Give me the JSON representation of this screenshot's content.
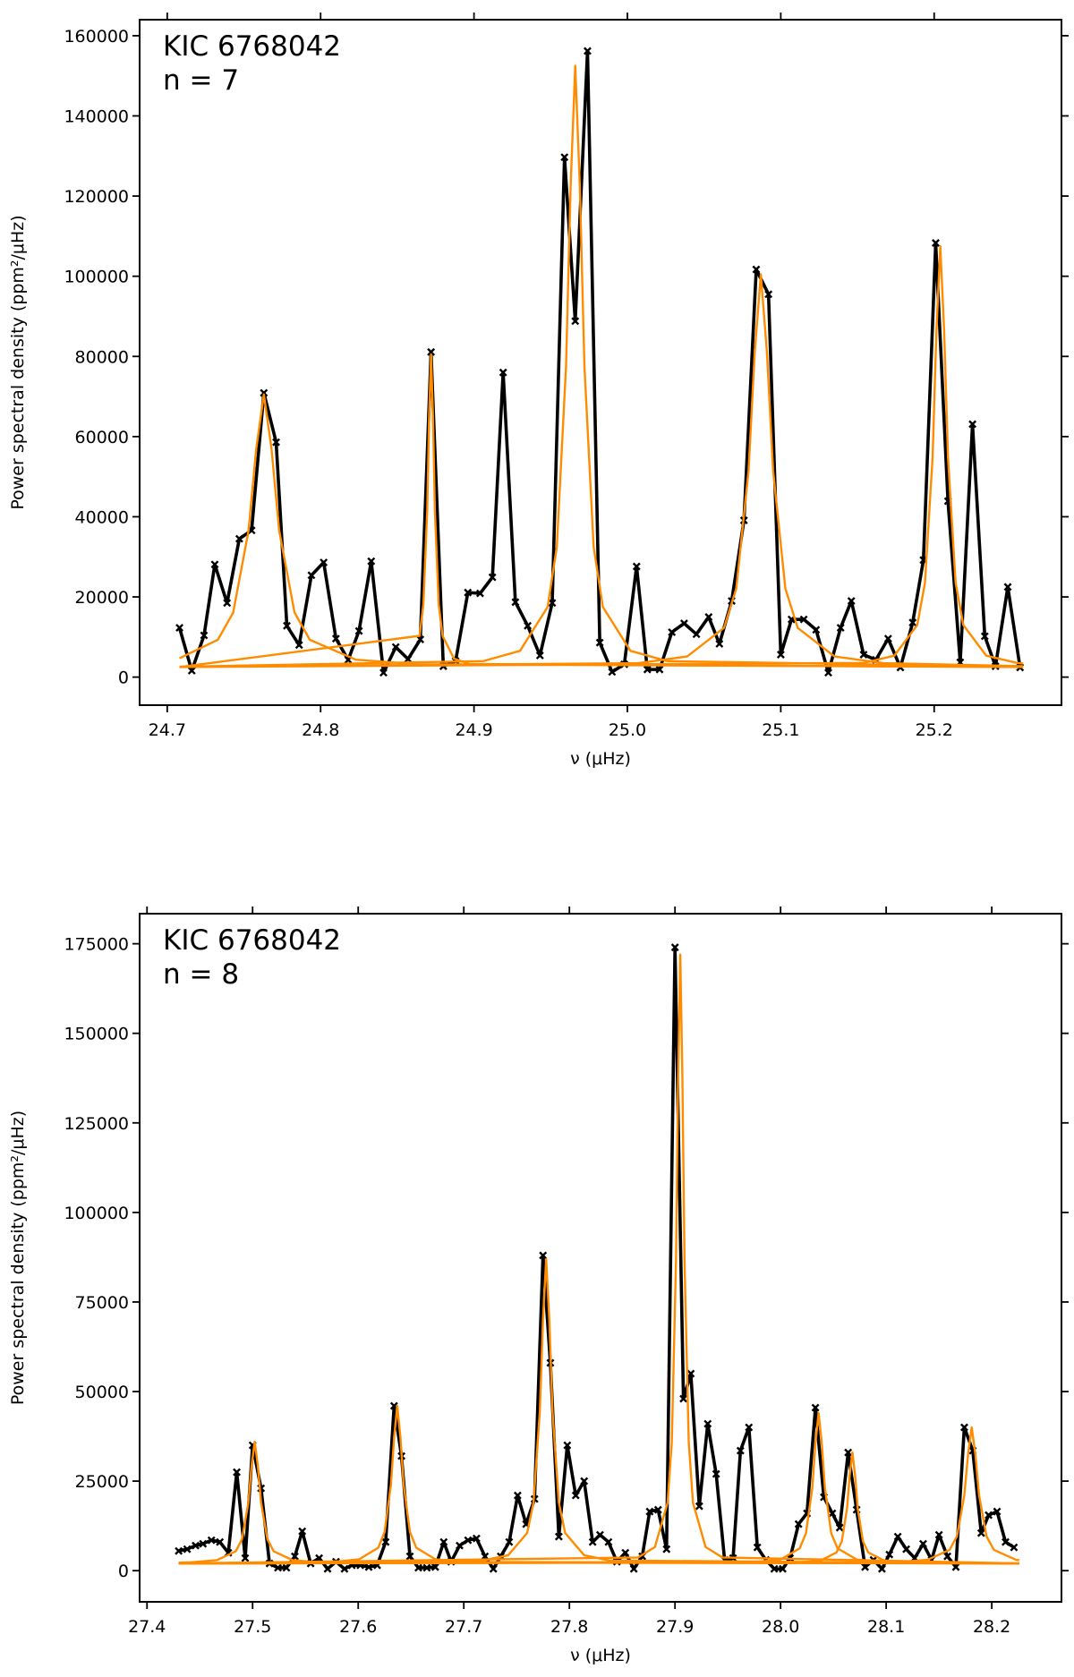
{
  "chart_data": [
    {
      "type": "line",
      "annotations": [
        "KIC 6768042",
        "n = 7"
      ],
      "x_label": "ν (μHz)",
      "y_label": "Power spectral density (ppm²/μHz)",
      "xlim": [
        24.682,
        25.283
      ],
      "ylim": [
        -7000,
        164000
      ],
      "xticks": [
        24.7,
        24.8,
        24.9,
        {
          "value": 25,
          "label": "25.0"
        },
        25.1,
        25.2
      ],
      "yticks": [
        0,
        20000,
        40000,
        60000,
        80000,
        100000,
        120000,
        140000,
        160000
      ],
      "series": [
        {
          "color": "#000000",
          "marker": "x",
          "x": [
            24.708,
            24.716,
            24.724,
            24.731,
            24.739,
            24.747,
            24.755,
            24.763,
            24.771,
            24.778,
            24.786,
            24.794,
            24.802,
            24.81,
            24.818,
            24.825,
            24.833,
            24.841,
            24.849,
            24.857,
            24.865,
            24.872,
            24.88,
            24.888,
            24.896,
            24.904,
            24.912,
            24.919,
            24.927,
            24.935,
            24.943,
            24.951,
            24.959,
            24.966,
            24.974,
            24.982,
            24.99,
            24.998,
            25.006,
            25.013,
            25.021,
            25.029,
            25.037,
            25.045,
            25.053,
            25.06,
            25.068,
            25.076,
            25.084,
            25.092,
            25.1,
            25.107,
            25.115,
            25.123,
            25.131,
            25.139,
            25.146,
            25.154,
            25.162,
            25.17,
            25.178,
            25.186,
            25.193,
            25.201,
            25.209,
            25.217,
            25.225,
            25.233,
            25.24,
            25.248,
            25.256
          ],
          "values": [
            12300,
            1600,
            10400,
            28100,
            18500,
            34500,
            36600,
            70900,
            58600,
            12800,
            8000,
            25400,
            28600,
            9600,
            4300,
            11500,
            28900,
            1100,
            7500,
            4500,
            9400,
            81100,
            2700,
            4000,
            21100,
            20900,
            24900,
            76000,
            18700,
            12800,
            5400,
            18500,
            129700,
            88800,
            156200,
            8600,
            1300,
            3200,
            27600,
            1900,
            1900,
            11200,
            13400,
            10700,
            15000,
            8300,
            19000,
            39100,
            101700,
            95500,
            5600,
            14400,
            14400,
            11800,
            1100,
            12300,
            19000,
            5600,
            4300,
            9600,
            2400,
            13600,
            29200,
            108300,
            43900,
            3700,
            63100,
            10200,
            2700,
            22500,
            2400
          ]
        },
        {
          "color": "#ff8c00",
          "x": [
            24.708,
            24.733,
            24.743,
            24.753,
            24.758,
            24.763,
            24.768,
            24.773,
            24.783,
            24.793,
            24.823,
            24.863,
            25.258
          ],
          "values": [
            4700,
            9300,
            16100,
            36500,
            56900,
            70500,
            56900,
            36500,
            16100,
            9300,
            4340,
            3200,
            2530
          ]
        },
        {
          "color": "#ff8c00",
          "x": [
            24.708,
            24.8645,
            24.867,
            24.8695,
            24.87075,
            24.872,
            24.87325,
            24.8745,
            24.877,
            24.8795,
            24.887,
            24.897,
            25.258
          ],
          "values": [
            2510,
            10300,
            18100,
            41500,
            64900,
            80500,
            64900,
            41500,
            18100,
            10300,
            4600,
            3270,
            2500
          ]
        },
        {
          "color": "#ff8c00",
          "x": [
            24.708,
            24.906,
            24.93,
            24.948,
            24.954,
            24.96,
            24.963,
            24.966,
            24.969,
            24.972,
            24.978,
            24.984,
            25.002,
            25.026,
            25.258
          ],
          "values": [
            2580,
            3990,
            6550,
            17500,
            32500,
            77500,
            122500,
            152500,
            122500,
            77500,
            32500,
            17500,
            6550,
            3990,
            2560
          ]
        },
        {
          "color": "#ff8c00",
          "x": [
            24.708,
            25.007,
            25.039,
            25.063,
            25.071,
            25.079,
            25.083,
            25.087,
            25.091,
            25.095,
            25.103,
            25.111,
            25.135,
            25.167,
            25.258
          ],
          "values": [
            2570,
            3470,
            5150,
            12300,
            22100,
            51500,
            80900,
            100500,
            80900,
            51500,
            22100,
            12300,
            5150,
            3470,
            2710
          ]
        },
        {
          "color": "#ff8c00",
          "x": [
            24.708,
            25.154,
            25.174,
            25.189,
            25.194,
            25.199,
            25.2015,
            25.204,
            25.2065,
            25.209,
            25.214,
            25.219,
            25.234,
            25.254,
            25.258
          ],
          "values": [
            2510,
            3540,
            5340,
            13000,
            23500,
            55000,
            86500,
            107500,
            86500,
            55000,
            23500,
            13000,
            5340,
            3540,
            3400
          ]
        }
      ]
    },
    {
      "type": "line",
      "annotations": [
        "KIC 6768042",
        "n = 8"
      ],
      "x_label": "ν (μHz)",
      "y_label": "Power spectral density (ppm²/μHz)",
      "xlim": [
        27.393,
        28.266
      ],
      "ylim": [
        -8700,
        183400
      ],
      "xticks": [
        27.4,
        27.5,
        27.6,
        27.7,
        27.8,
        27.9,
        {
          "value": 28,
          "label": "28.0"
        },
        28.1,
        28.2
      ],
      "yticks": [
        0,
        25000,
        50000,
        75000,
        100000,
        125000,
        150000,
        175000
      ],
      "series": [
        {
          "color": "#000000",
          "marker": "x",
          "x": [
            27.43,
            27.438,
            27.446,
            27.453,
            27.461,
            27.469,
            27.477,
            27.485,
            27.493,
            27.5,
            27.508,
            27.516,
            27.524,
            27.532,
            27.54,
            27.547,
            27.555,
            27.563,
            27.571,
            27.579,
            27.587,
            27.594,
            27.602,
            27.61,
            27.618,
            27.626,
            27.634,
            27.641,
            27.649,
            27.657,
            27.665,
            27.673,
            27.681,
            27.688,
            27.696,
            27.704,
            27.712,
            27.72,
            27.728,
            27.735,
            27.743,
            27.751,
            27.759,
            27.767,
            27.775,
            27.782,
            27.79,
            27.798,
            27.806,
            27.814,
            27.822,
            27.829,
            27.837,
            27.845,
            27.853,
            27.861,
            27.869,
            27.876,
            27.884,
            27.892,
            27.9,
            27.908,
            27.915,
            27.923,
            27.931,
            27.939,
            27.947,
            27.955,
            27.962,
            27.97,
            27.978,
            27.986,
            27.994,
            28.002,
            28.009,
            28.017,
            28.025,
            28.033,
            28.041,
            28.049,
            28.056,
            28.064,
            28.072,
            28.08,
            28.088,
            28.096,
            28.103,
            28.111,
            28.119,
            28.127,
            28.135,
            28.143,
            28.15,
            28.158,
            28.166,
            28.174,
            28.182,
            28.19,
            28.197,
            28.205,
            28.213,
            28.221
          ],
          "values": [
            5500,
            6000,
            7000,
            7500,
            8500,
            8000,
            5000,
            27500,
            3500,
            35000,
            23000,
            2000,
            800,
            800,
            4000,
            11000,
            2000,
            3500,
            500,
            2500,
            500,
            1500,
            1500,
            1000,
            1500,
            8000,
            46000,
            32000,
            4000,
            800,
            800,
            1000,
            8000,
            2500,
            7000,
            8500,
            9000,
            4000,
            500,
            4000,
            8000,
            21000,
            13000,
            20000,
            88000,
            58000,
            9500,
            35000,
            21000,
            25000,
            8000,
            10000,
            8000,
            2500,
            5000,
            500,
            4000,
            16500,
            17000,
            6000,
            174000,
            48000,
            55000,
            18000,
            41000,
            27000,
            3000,
            3500,
            33500,
            40000,
            6500,
            3000,
            500,
            500,
            3500,
            13000,
            16000,
            45500,
            20500,
            16000,
            12000,
            33000,
            17000,
            1000,
            3000,
            500,
            4500,
            9500,
            6000,
            3500,
            7500,
            3000,
            10000,
            4000,
            1000,
            40000,
            33500,
            10500,
            15500,
            16500,
            8000,
            6500
          ]
        },
        {
          "color": "#ff8c00",
          "x": [
            27.43,
            27.442,
            27.466,
            27.484,
            27.49,
            27.496,
            27.499,
            27.502,
            27.505,
            27.508,
            27.514,
            27.52,
            27.538,
            27.562,
            28.226
          ],
          "values": [
            2240,
            2340,
            2920,
            5400,
            8800,
            19000,
            29200,
            36000,
            29200,
            19000,
            8800,
            5400,
            2920,
            2340,
            2000
          ]
        },
        {
          "color": "#ff8c00",
          "x": [
            27.43,
            27.577,
            27.601,
            27.619,
            27.625,
            27.631,
            27.634,
            27.637,
            27.64,
            27.643,
            27.649,
            27.655,
            27.673,
            27.697,
            28.226
          ],
          "values": [
            2050,
            2440,
            3190,
            6400,
            10800,
            24000,
            37200,
            46000,
            37200,
            24000,
            10800,
            6400,
            3190,
            2440,
            2010
          ]
        },
        {
          "color": "#ff8c00",
          "x": [
            27.43,
            27.718,
            27.742,
            27.76,
            27.766,
            27.772,
            27.775,
            27.778,
            27.781,
            27.784,
            27.79,
            27.796,
            27.814,
            27.838,
            28.226
          ],
          "values": [
            2030,
            2840,
            4300,
            10500,
            19000,
            44500,
            70000,
            87000,
            70000,
            44500,
            19000,
            10500,
            4300,
            2840,
            2020
          ]
        },
        {
          "color": "#ff8c00",
          "x": [
            27.43,
            27.865,
            27.881,
            27.893,
            27.897,
            27.901,
            27.903,
            27.905,
            27.907,
            27.909,
            27.913,
            27.917,
            27.929,
            27.945,
            28.226
          ],
          "values": [
            2010,
            3680,
            6600,
            19000,
            36000,
            87000,
            138000,
            172000,
            138000,
            87000,
            36000,
            19000,
            6600,
            3680,
            2030
          ]
        },
        {
          "color": "#ff8c00",
          "x": [
            27.43,
            27.976,
            28.0,
            28.018,
            28.024,
            28.03,
            28.033,
            28.036,
            28.039,
            28.042,
            28.048,
            28.054,
            28.072,
            28.096,
            28.226
          ],
          "values": [
            2000,
            2420,
            3130,
            6200,
            10400,
            23000,
            35600,
            44000,
            35600,
            23000,
            10400,
            6200,
            3130,
            2420,
            2010
          ]
        },
        {
          "color": "#ff8c00",
          "x": [
            27.43,
            28.018,
            28.038,
            28.053,
            28.058,
            28.063,
            28.0655,
            28.068,
            28.0705,
            28.073,
            28.078,
            28.083,
            28.098,
            28.118,
            28.226
          ],
          "values": [
            2000,
            2310,
            2840,
            5100,
            8200,
            17500,
            26800,
            33000,
            26800,
            17500,
            8200,
            5100,
            2840,
            2310,
            2000
          ]
        },
        {
          "color": "#ff8c00",
          "x": [
            27.43,
            28.111,
            28.139,
            28.16,
            28.167,
            28.174,
            28.1775,
            28.181,
            28.1845,
            28.188,
            28.195,
            28.202,
            28.223,
            28.226
          ],
          "values": [
            2000,
            2380,
            3030,
            5800,
            9600,
            21000,
            32400,
            40000,
            32400,
            21000,
            9600,
            5800,
            3030,
            2930
          ]
        }
      ]
    }
  ]
}
